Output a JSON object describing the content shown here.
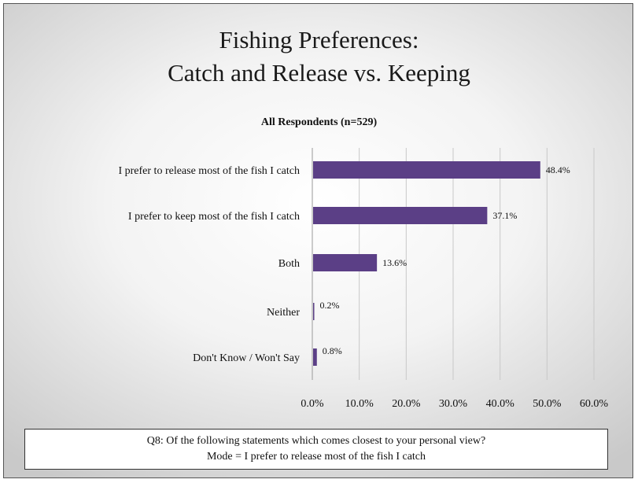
{
  "chart_data": {
    "type": "bar",
    "orientation": "horizontal",
    "title": "Fishing Preferences:",
    "title_line2": "Catch and Release vs. Keeping",
    "subtitle": "All Respondents (n=529)",
    "categories": [
      "I prefer to release most of the fish I catch",
      "I prefer to keep most of the fish I catch",
      "Both",
      "Neither",
      "Don't Know / Won't Say"
    ],
    "values": [
      48.4,
      37.1,
      13.6,
      0.2,
      0.8
    ],
    "value_labels": [
      "48.4%",
      "37.1%",
      "13.6%",
      "0.2%",
      "0.8%"
    ],
    "xlim": [
      0,
      60
    ],
    "x_ticks": [
      "0.0%",
      "10.0%",
      "20.0%",
      "30.0%",
      "40.0%",
      "50.0%",
      "60.0%"
    ],
    "grid": true,
    "legend": "none",
    "bar_color": "#5b3f86"
  },
  "footer": {
    "question": "Q8: Of the following statements which comes closest to your personal view?",
    "mode": "Mode = I prefer to release most of the fish I catch"
  }
}
